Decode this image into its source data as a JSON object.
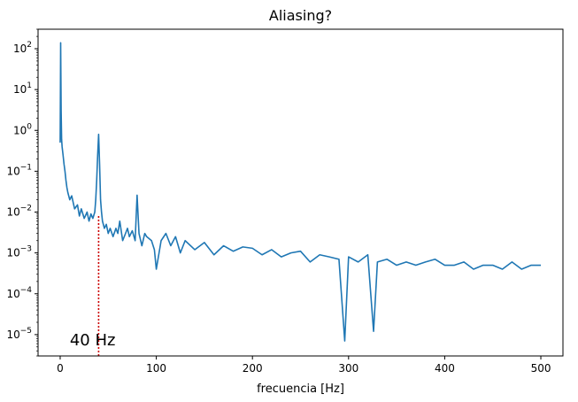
{
  "chart_data": {
    "type": "line",
    "title": "Aliasing?",
    "xlabel": "frecuencia [Hz]",
    "ylabel": "",
    "x_ticks": [
      0,
      100,
      200,
      300,
      400,
      500
    ],
    "x_tick_labels": [
      "0",
      "100",
      "200",
      "300",
      "400",
      "500"
    ],
    "y_scale": "log",
    "y_ticks_exponent": [
      -5,
      -4,
      -3,
      -2,
      -1,
      0,
      1,
      2
    ],
    "y_tick_labels": [
      {
        "base": "10",
        "exp": "−5"
      },
      {
        "base": "10",
        "exp": "−4"
      },
      {
        "base": "10",
        "exp": "−3"
      },
      {
        "base": "10",
        "exp": "−2"
      },
      {
        "base": "10",
        "exp": "−1"
      },
      {
        "base": "10",
        "exp": "0"
      },
      {
        "base": "10",
        "exp": "1"
      },
      {
        "base": "10",
        "exp": "2"
      }
    ],
    "xlim": [
      -23,
      523
    ],
    "ylim": [
      3e-06,
      300
    ],
    "grid": false,
    "series": [
      {
        "color": "#1f77b4",
        "x": [
          0,
          0.5,
          1,
          1.5,
          2,
          3,
          4,
          5,
          6,
          7,
          8,
          10,
          12,
          15,
          18,
          20,
          22,
          25,
          28,
          30,
          32,
          34,
          36,
          37,
          38,
          39,
          40,
          41,
          42,
          43,
          44,
          46,
          48,
          50,
          52,
          55,
          58,
          60,
          62,
          65,
          68,
          70,
          72,
          75,
          78,
          80,
          82,
          85,
          88,
          90,
          95,
          98,
          100,
          105,
          110,
          115,
          120,
          125,
          130,
          140,
          150,
          160,
          170,
          180,
          190,
          200,
          210,
          220,
          230,
          240,
          250,
          260,
          270,
          280,
          290,
          296,
          300,
          310,
          320,
          326,
          330,
          340,
          350,
          360,
          370,
          380,
          390,
          400,
          410,
          420,
          430,
          440,
          450,
          460,
          470,
          480,
          490,
          500
        ],
        "y": [
          0.5,
          140,
          3,
          0.6,
          0.4,
          0.25,
          0.15,
          0.1,
          0.06,
          0.04,
          0.03,
          0.02,
          0.025,
          0.012,
          0.015,
          0.008,
          0.012,
          0.007,
          0.01,
          0.006,
          0.009,
          0.007,
          0.01,
          0.02,
          0.06,
          0.25,
          0.8,
          0.15,
          0.02,
          0.01,
          0.006,
          0.004,
          0.005,
          0.003,
          0.004,
          0.0025,
          0.004,
          0.003,
          0.006,
          0.002,
          0.003,
          0.004,
          0.0025,
          0.0035,
          0.002,
          0.026,
          0.003,
          0.0015,
          0.003,
          0.0025,
          0.002,
          0.0012,
          0.0004,
          0.002,
          0.003,
          0.0015,
          0.0025,
          0.001,
          0.002,
          0.0012,
          0.0018,
          0.0009,
          0.0015,
          0.0011,
          0.0014,
          0.0013,
          0.0009,
          0.0012,
          0.0008,
          0.001,
          0.0011,
          0.0006,
          0.0009,
          0.0008,
          0.0007,
          7e-06,
          0.0008,
          0.0006,
          0.0009,
          1.2e-05,
          0.0006,
          0.0007,
          0.0005,
          0.0006,
          0.0005,
          0.0006,
          0.0007,
          0.0005,
          0.0005,
          0.0006,
          0.0004,
          0.0005,
          0.0005,
          0.0004,
          0.0006,
          0.0004,
          0.0005,
          0.0005
        ]
      }
    ],
    "marker_line": {
      "x": 40,
      "y_from": 3e-06,
      "y_to": 0.008,
      "color": "#cc0000",
      "style": "dotted"
    },
    "annotation": {
      "text": "40 Hz",
      "x": 10,
      "y": 5.5e-06
    }
  }
}
